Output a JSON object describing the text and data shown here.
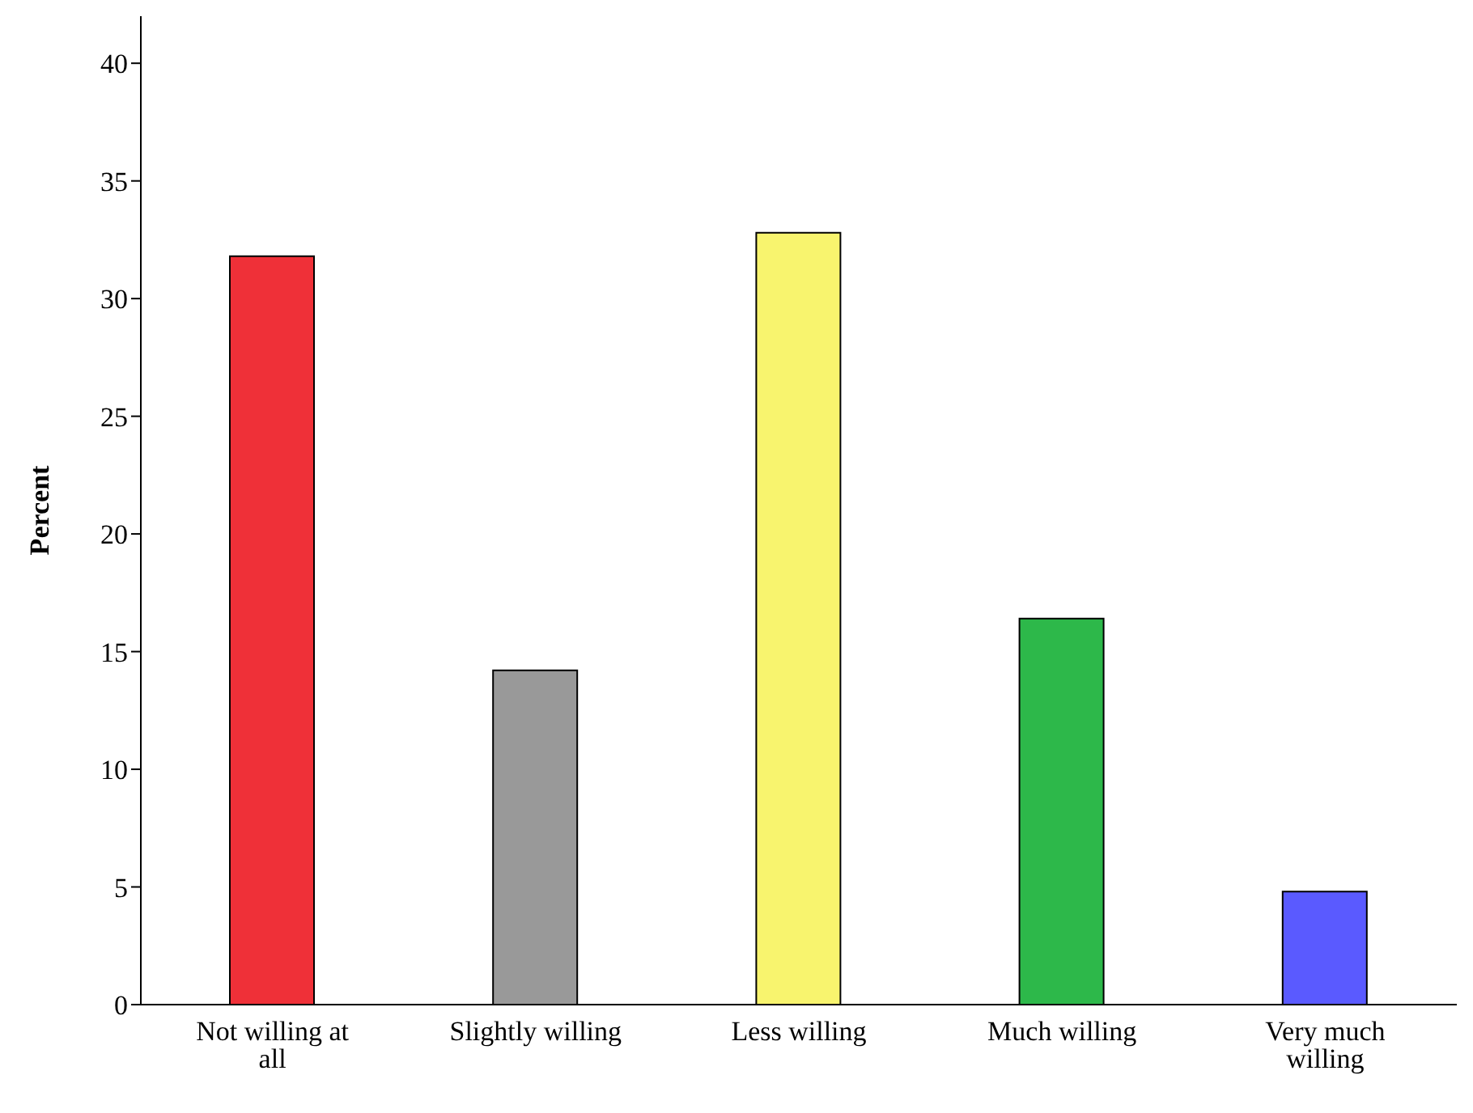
{
  "chart_data": {
    "type": "bar",
    "ylabel": "Percent",
    "categories": [
      "Not willing at all",
      "Slightly willing",
      "Less willing",
      "Much willing",
      "Very much willing"
    ],
    "values": [
      31.8,
      14.2,
      32.8,
      16.4,
      4.8
    ],
    "colors": [
      "#ef3038",
      "#999999",
      "#f8f46e",
      "#2db84a",
      "#5a5aff"
    ],
    "ylim": [
      0,
      42
    ],
    "yticks": [
      0,
      5,
      10,
      15,
      20,
      25,
      30,
      35,
      40
    ],
    "grid": false,
    "legend": false
  }
}
